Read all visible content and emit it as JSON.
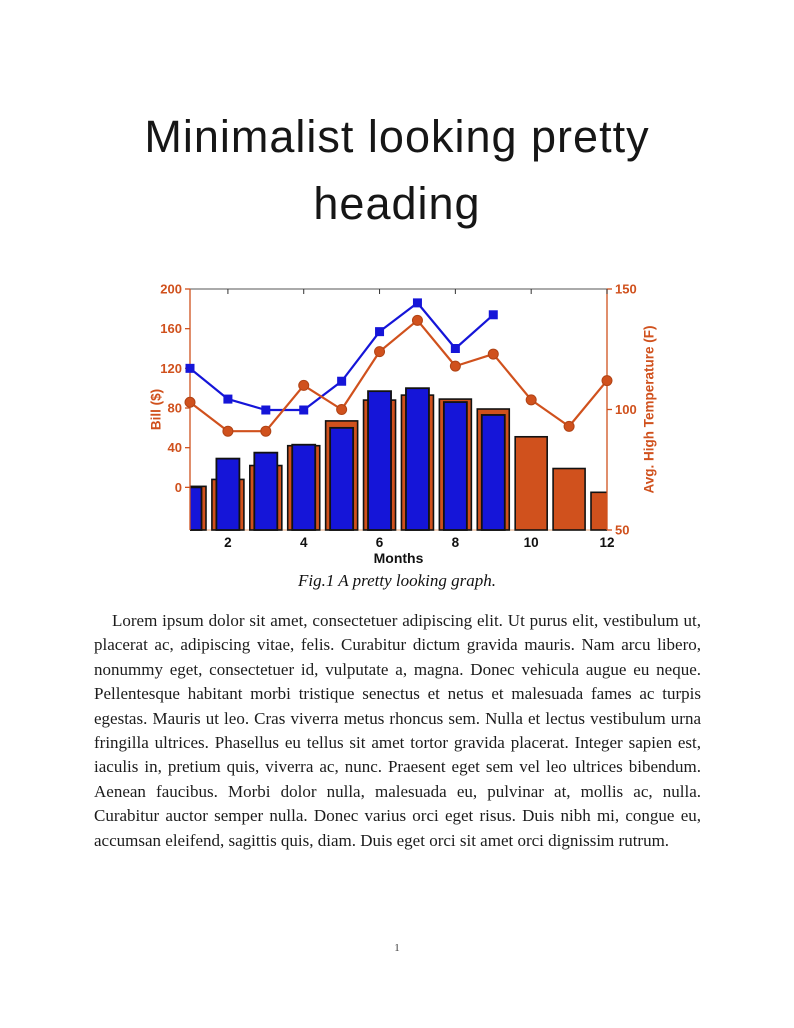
{
  "page": {
    "heading": {
      "line1": "Minimalist looking pretty",
      "line2": "heading"
    },
    "figure": {
      "caption": "Fig.1 A pretty looking graph."
    },
    "body": {
      "paragraph": "Lorem ipsum dolor sit amet, consectetuer adipiscing elit. Ut purus elit, vestibulum ut, placerat ac, adipiscing vitae, felis. Curabitur dictum gravida mauris. Nam arcu libero, nonummy eget, consectetuer id, vulputate a, magna. Donec vehicula augue eu neque. Pellentesque habitant morbi tristique senectus et netus et malesuada fames ac turpis egestas. Mauris ut leo. Cras viverra metus rhoncus sem. Nulla et lectus vestibulum urna fringilla ultrices. Phasellus eu tellus sit amet tortor gravida placerat. Integer sapien est, iaculis in, pretium quis, viverra ac, nunc. Praesent eget sem vel leo ultrices bibendum. Aenean faucibus. Morbi dolor nulla, malesuada eu, pulvinar at, mollis ac, nulla. Curabitur auctor semper nulla. Donec varius orci eget risus. Duis nibh mi, congue eu, accumsan eleifend, sagittis quis, diam. Duis eget orci sit amet orci dignissim rutrum."
    },
    "footer": {
      "page_number": "1"
    }
  },
  "chart_data": {
    "type": "combo-bar-line-dual-axis",
    "title": "",
    "xlabel": "Months",
    "x": [
      1,
      2,
      3,
      4,
      5,
      6,
      7,
      8,
      9,
      10,
      11,
      12
    ],
    "x_ticks": [
      2,
      4,
      6,
      8,
      10,
      12
    ],
    "xlim": [
      1,
      12
    ],
    "grid": "off",
    "legend": "none",
    "colors": {
      "orange": "#d0511d",
      "blue": "#1515d8",
      "x_text": "#111111",
      "top_spine": "#555555",
      "bottom_spine": "#eebc96",
      "bar_edge": "#121212"
    },
    "left_axis": {
      "label": "Bill ($)",
      "ticks": [
        0,
        40,
        80,
        120,
        160,
        200
      ],
      "range": [
        -43,
        200
      ],
      "color": "#d0511d"
    },
    "right_axis": {
      "label": "Avg. High Temperature (F)",
      "ticks": [
        50,
        100,
        150
      ],
      "range": [
        50,
        150
      ],
      "color": "#d0511d"
    },
    "series": [
      {
        "name": "bill-outer-bar",
        "type": "bar",
        "axis": "left",
        "color": "#d0511d",
        "values": [
          1,
          8,
          22,
          42,
          67,
          88,
          93,
          89,
          79,
          51,
          19,
          -5
        ]
      },
      {
        "name": "bill-inner-bar",
        "type": "bar",
        "axis": "left",
        "color": "#1515d8",
        "values": [
          0,
          29,
          35,
          43,
          60,
          97,
          100,
          86,
          73,
          null,
          null,
          null
        ]
      },
      {
        "name": "blue-line",
        "type": "line",
        "axis": "left",
        "marker": "square",
        "color": "#1515d8",
        "values": [
          120,
          89,
          78,
          78,
          107,
          157,
          186,
          140,
          174,
          null,
          null,
          null
        ]
      },
      {
        "name": "temperature-line",
        "type": "line",
        "axis": "right",
        "marker": "circle",
        "color": "#d0511d",
        "values": [
          103,
          91,
          91,
          110,
          100,
          124,
          137,
          118,
          123,
          104,
          93,
          112
        ]
      }
    ]
  }
}
